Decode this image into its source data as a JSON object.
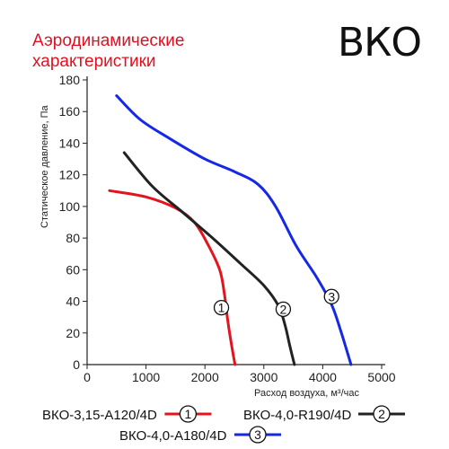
{
  "title": {
    "line1": "Аэродинамические",
    "line2": "характеристики"
  },
  "badge": "ВКО",
  "chart_data": {
    "type": "line",
    "xlabel": "Расход воздуха, м³/час",
    "ylabel": "Статическое давление, Па",
    "xlim": [
      0,
      5000
    ],
    "ylim": [
      0,
      180
    ],
    "x_ticks": [
      0,
      1000,
      2000,
      3000,
      4000,
      5000
    ],
    "y_ticks": [
      0,
      20,
      40,
      60,
      80,
      100,
      120,
      140,
      160,
      180
    ],
    "grid": false,
    "series": [
      {
        "name": "ВКО-3,15-А120/4D",
        "marker": "1",
        "color": "#e3141e",
        "points": [
          [
            380,
            110
          ],
          [
            1000,
            106
          ],
          [
            1500,
            99
          ],
          [
            1820,
            90
          ],
          [
            2050,
            76
          ],
          [
            2250,
            60
          ],
          [
            2330,
            45
          ],
          [
            2380,
            30
          ],
          [
            2440,
            15
          ],
          [
            2510,
            0
          ]
        ]
      },
      {
        "name": "ВКО-4,0-R190/4D",
        "marker": "2",
        "color": "#222222",
        "points": [
          [
            630,
            134
          ],
          [
            1100,
            113
          ],
          [
            1600,
            97
          ],
          [
            2100,
            81
          ],
          [
            2600,
            64
          ],
          [
            3000,
            50
          ],
          [
            3250,
            37
          ],
          [
            3360,
            25
          ],
          [
            3440,
            12
          ],
          [
            3520,
            0
          ]
        ]
      },
      {
        "name": "ВКО-4,0-А180/4D",
        "marker": "3",
        "color": "#1428e6",
        "points": [
          [
            500,
            170
          ],
          [
            900,
            155
          ],
          [
            1400,
            143
          ],
          [
            2000,
            130
          ],
          [
            2500,
            122
          ],
          [
            2900,
            114
          ],
          [
            3200,
            100
          ],
          [
            3550,
            75
          ],
          [
            3900,
            55
          ],
          [
            4150,
            38
          ],
          [
            4300,
            22
          ],
          [
            4480,
            0
          ]
        ]
      }
    ],
    "markers": [
      {
        "label": "1",
        "x": 2280,
        "y": 36
      },
      {
        "label": "2",
        "x": 3330,
        "y": 35
      },
      {
        "label": "3",
        "x": 4150,
        "y": 43
      }
    ]
  }
}
